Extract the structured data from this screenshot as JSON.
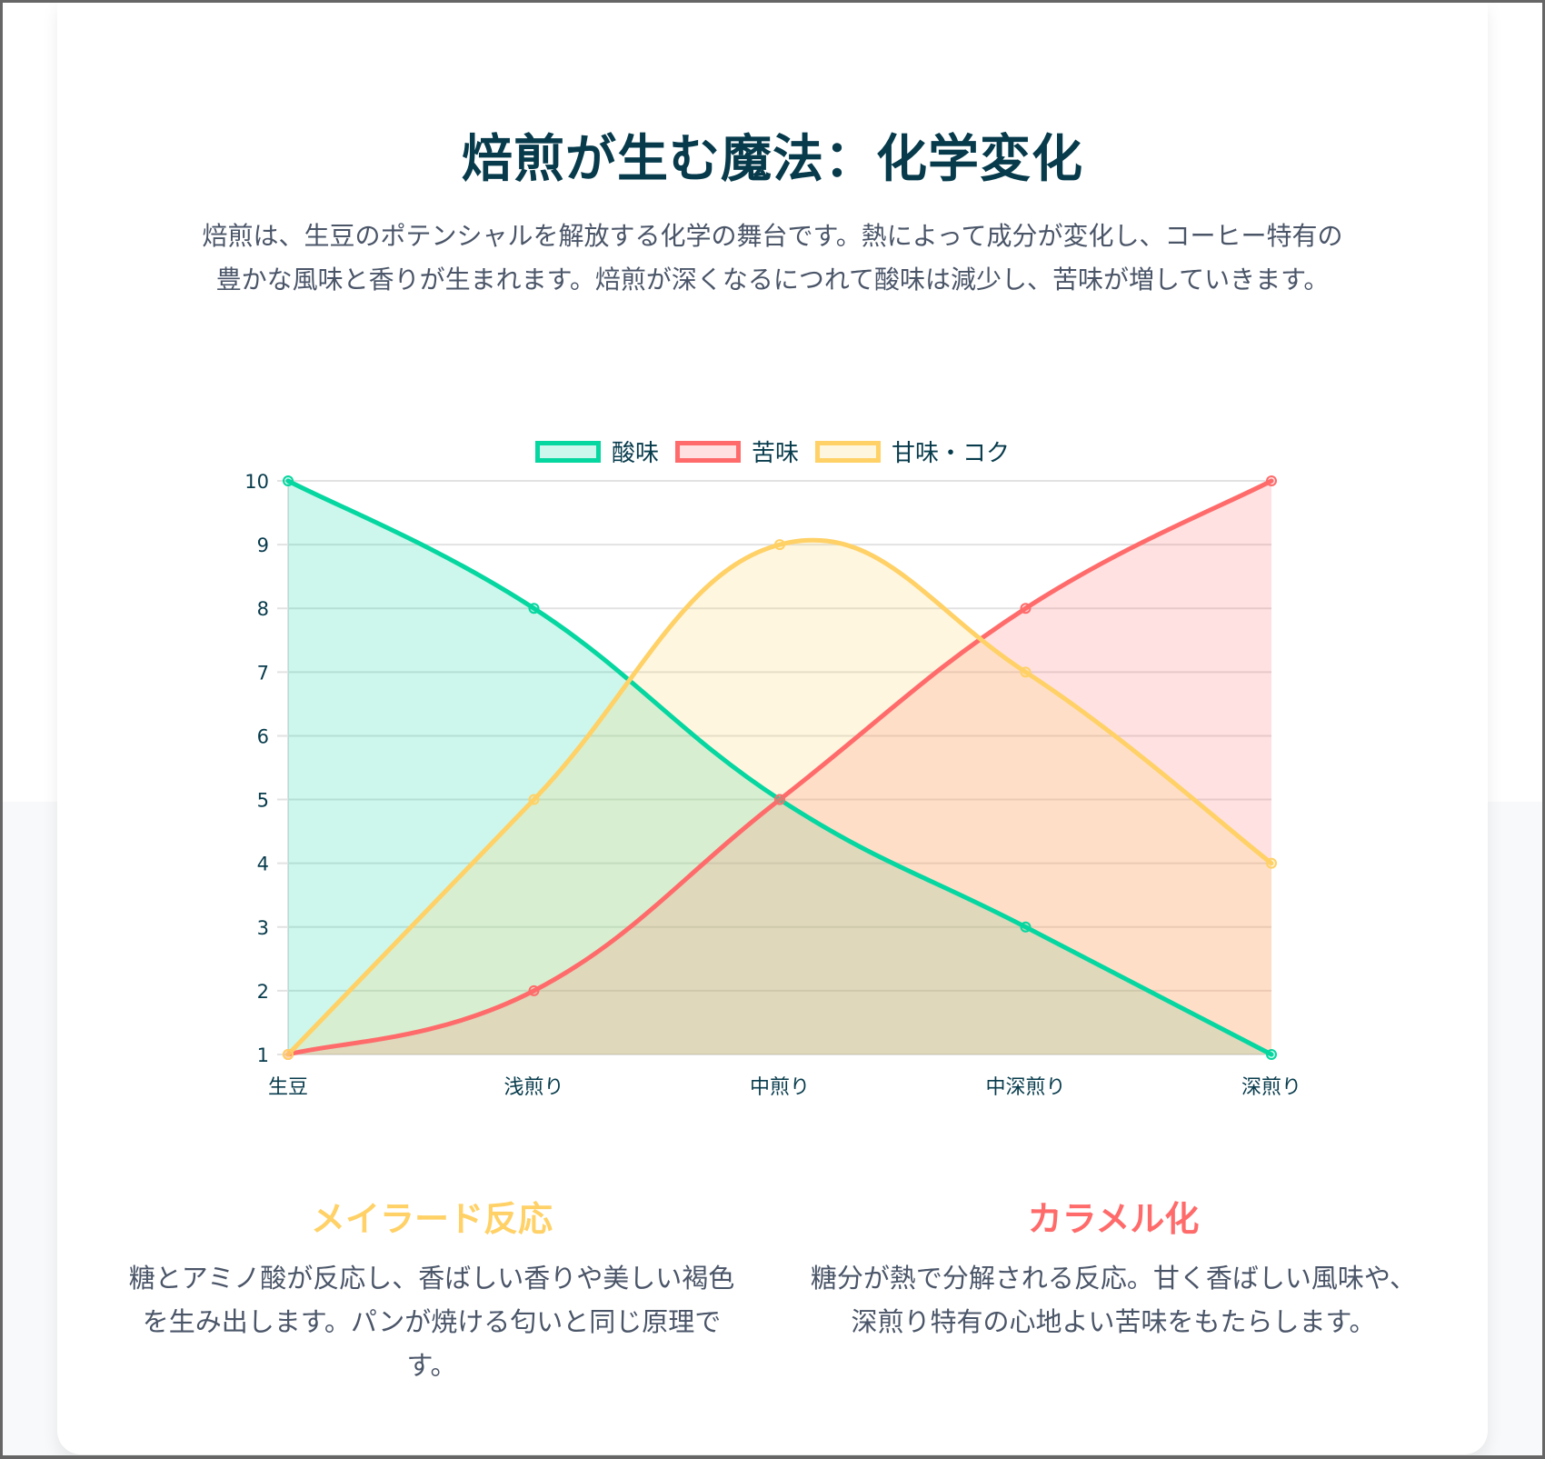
{
  "header": {
    "title": "焙煎が生む魔法：化学変化",
    "intro": "焙煎は、生豆のポテンシャルを解放する化学の舞台です。熱によって成分が変化し、コーヒー特有の豊かな風味と香りが生まれます。焙煎が深くなるにつれて酸味は減少し、苦味が増していきます。"
  },
  "legend": [
    {
      "label": "酸味",
      "color": "#06D6A0",
      "fill": "#CDF6EC"
    },
    {
      "label": "苦味",
      "color": "#FF6B6B",
      "fill": "#FFE1E1"
    },
    {
      "label": "甘味・コク",
      "color": "#FFD166",
      "fill": "#FFF6E0"
    }
  ],
  "chart_data": {
    "type": "line",
    "title": "",
    "categories": [
      "生豆",
      "浅煎り",
      "中煎り",
      "中深煎り",
      "深煎り"
    ],
    "series": [
      {
        "name": "酸味",
        "values": [
          10,
          8,
          5,
          3,
          1
        ],
        "color": "#06D6A0",
        "fill": "rgba(6,214,160,0.2)"
      },
      {
        "name": "苦味",
        "values": [
          1,
          2,
          5,
          8,
          10
        ],
        "color": "#FF6B6B",
        "fill": "rgba(255,107,107,0.2)"
      },
      {
        "name": "甘味・コク",
        "values": [
          1,
          5,
          9,
          7,
          4
        ],
        "color": "#FFD166",
        "fill": "rgba(255,209,102,0.2)"
      }
    ],
    "xlabel": "",
    "ylabel": "",
    "ylim": [
      1,
      10
    ],
    "yticks": [
      1,
      2,
      3,
      4,
      5,
      6,
      7,
      8,
      9,
      10
    ],
    "grid": true,
    "legend_position": "top",
    "smooth": true,
    "filled": true
  },
  "cards": [
    {
      "title": "メイラード反応",
      "color": "#FFD166",
      "text": "糖とアミノ酸が反応し、香ばしい香りや美しい褐色を生み出します。パンが焼ける匂いと同じ原理です。"
    },
    {
      "title": "カラメル化",
      "color": "#FF6B6B",
      "text": "糖分が熱で分解される反応。甘く香ばしい風味や、深煎り特有の心地よい苦味をもたらします。"
    }
  ]
}
